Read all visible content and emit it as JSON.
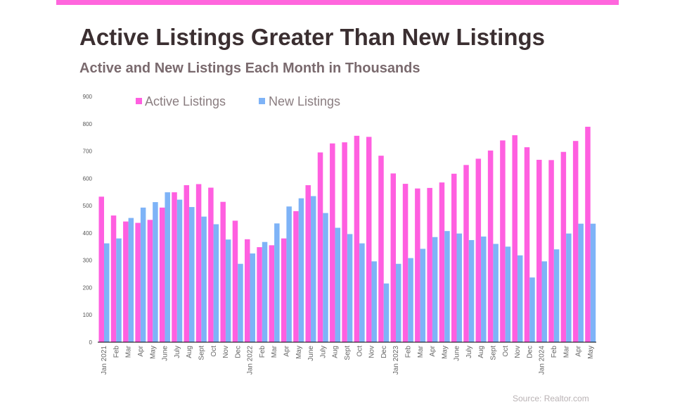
{
  "header": {
    "title": "Active Listings Greater Than New Listings",
    "subtitle": "Active and New Listings Each Month in Thousands"
  },
  "footer": {
    "source": "Source: Realtor.com"
  },
  "colors": {
    "accent_bar": "#ff66dd",
    "active": "#ff5fe0",
    "new": "#7eb3f7"
  },
  "chart_data": {
    "type": "bar",
    "categories": [
      "Jan 2021",
      "Feb",
      "Mar",
      "Apr",
      "May",
      "June",
      "July",
      "Aug",
      "Sept",
      "Oct",
      "Nov",
      "Dec",
      "Jan 2022",
      "Feb",
      "Mar",
      "Apr",
      "May",
      "June",
      "July",
      "Aug",
      "Sept",
      "Oct",
      "Nov",
      "Dec",
      "Jan 2023",
      "Feb",
      "Mar",
      "Apr",
      "May",
      "June",
      "July",
      "Aug",
      "Sept",
      "Oct",
      "Nov",
      "Dec",
      "Jan 2024",
      "Feb",
      "Mar",
      "Apr",
      "May"
    ],
    "series": [
      {
        "name": "Active Listings",
        "values": [
          533,
          464,
          442,
          437,
          448,
          493,
          549,
          575,
          579,
          566,
          514,
          445,
          377,
          348,
          355,
          380,
          480,
          575,
          695,
          728,
          732,
          756,
          752,
          683,
          618,
          580,
          563,
          565,
          585,
          617,
          649,
          672,
          702,
          739,
          758,
          714,
          668,
          667,
          697,
          737,
          789
        ]
      },
      {
        "name": "New Listings",
        "values": [
          362,
          380,
          455,
          493,
          513,
          549,
          522,
          495,
          460,
          432,
          376,
          287,
          325,
          367,
          435,
          497,
          527,
          535,
          473,
          419,
          396,
          362,
          296,
          215,
          287,
          308,
          342,
          385,
          407,
          398,
          374,
          387,
          360,
          350,
          318,
          237,
          296,
          340,
          398,
          434,
          434
        ]
      }
    ],
    "ylim": [
      0,
      900
    ],
    "yticks": [
      0,
      100,
      200,
      300,
      400,
      500,
      600,
      700,
      800,
      900
    ],
    "legend": "top",
    "grid": false
  }
}
